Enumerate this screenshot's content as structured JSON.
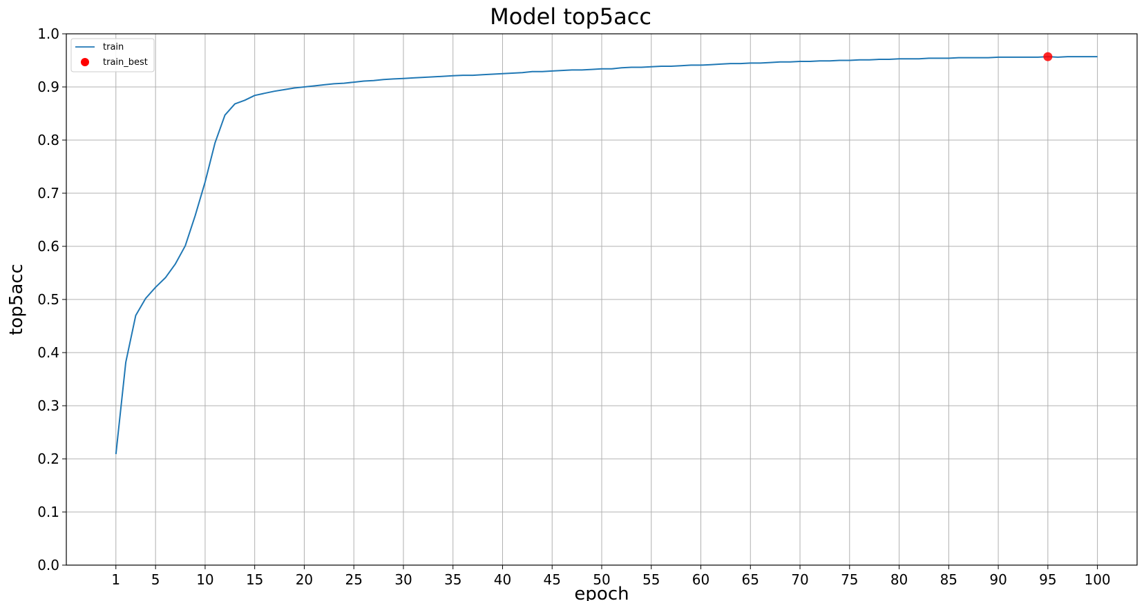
{
  "chart_data": {
    "type": "line",
    "title": "Model top5acc",
    "xlabel": "epoch",
    "ylabel": "top5acc",
    "xlim": [
      -4,
      104
    ],
    "ylim": [
      0.0,
      1.0
    ],
    "xticks": [
      1,
      5,
      10,
      15,
      20,
      25,
      30,
      35,
      40,
      45,
      50,
      55,
      60,
      65,
      70,
      75,
      80,
      85,
      90,
      95,
      100
    ],
    "xtick_labels": [
      "1",
      "5",
      "10",
      "15",
      "20",
      "25",
      "30",
      "35",
      "40",
      "45",
      "50",
      "55",
      "60",
      "65",
      "70",
      "75",
      "80",
      "85",
      "90",
      "95",
      "100"
    ],
    "yticks": [
      0.0,
      0.1,
      0.2,
      0.3,
      0.4,
      0.5,
      0.6,
      0.7,
      0.8,
      0.9,
      1.0
    ],
    "ytick_labels": [
      "0.0",
      "0.1",
      "0.2",
      "0.3",
      "0.4",
      "0.5",
      "0.6",
      "0.7",
      "0.8",
      "0.9",
      "1.0"
    ],
    "grid": true,
    "legend_position": "top-left",
    "series": [
      {
        "name": "train",
        "kind": "line",
        "color": "#1f77b4",
        "x": [
          1,
          2,
          3,
          4,
          5,
          6,
          7,
          8,
          9,
          10,
          11,
          12,
          13,
          14,
          15,
          16,
          17,
          18,
          19,
          20,
          21,
          22,
          23,
          24,
          25,
          26,
          27,
          28,
          29,
          30,
          31,
          32,
          33,
          34,
          35,
          36,
          37,
          38,
          39,
          40,
          41,
          42,
          43,
          44,
          45,
          46,
          47,
          48,
          49,
          50,
          51,
          52,
          53,
          54,
          55,
          56,
          57,
          58,
          59,
          60,
          61,
          62,
          63,
          64,
          65,
          66,
          67,
          68,
          69,
          70,
          71,
          72,
          73,
          74,
          75,
          76,
          77,
          78,
          79,
          80,
          81,
          82,
          83,
          84,
          85,
          86,
          87,
          88,
          89,
          90,
          91,
          92,
          93,
          94,
          95,
          96,
          97,
          98,
          99,
          100
        ],
        "y": [
          0.209,
          0.382,
          0.47,
          0.502,
          0.523,
          0.541,
          0.567,
          0.601,
          0.658,
          0.721,
          0.795,
          0.847,
          0.868,
          0.875,
          0.884,
          0.888,
          0.892,
          0.895,
          0.898,
          0.9,
          0.902,
          0.904,
          0.906,
          0.907,
          0.909,
          0.911,
          0.912,
          0.914,
          0.915,
          0.916,
          0.917,
          0.918,
          0.919,
          0.92,
          0.921,
          0.922,
          0.922,
          0.923,
          0.924,
          0.925,
          0.926,
          0.927,
          0.929,
          0.929,
          0.93,
          0.931,
          0.932,
          0.932,
          0.933,
          0.934,
          0.934,
          0.936,
          0.937,
          0.937,
          0.938,
          0.939,
          0.939,
          0.94,
          0.941,
          0.941,
          0.942,
          0.943,
          0.944,
          0.944,
          0.945,
          0.945,
          0.946,
          0.947,
          0.947,
          0.948,
          0.948,
          0.949,
          0.949,
          0.95,
          0.95,
          0.951,
          0.951,
          0.952,
          0.952,
          0.953,
          0.953,
          0.953,
          0.954,
          0.954,
          0.954,
          0.955,
          0.955,
          0.955,
          0.955,
          0.956,
          0.956,
          0.956,
          0.956,
          0.956,
          0.957,
          0.956,
          0.957,
          0.957,
          0.957,
          0.957
        ]
      },
      {
        "name": "train_best",
        "kind": "scatter",
        "color": "#ff0000",
        "x": [
          95
        ],
        "y": [
          0.957
        ]
      }
    ]
  }
}
